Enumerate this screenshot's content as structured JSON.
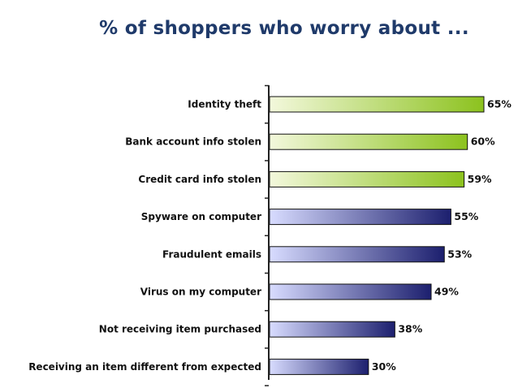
{
  "chart_data": {
    "type": "bar",
    "orientation": "horizontal",
    "title": "% of shoppers who worry about ...",
    "categories": [
      "Identity theft",
      "Bank account info stolen",
      "Credit card info stolen",
      "Spyware on computer",
      "Fraudulent emails",
      "Virus on my computer",
      "Not receiving item purchased",
      "Receiving an item different from expected"
    ],
    "values": [
      65,
      60,
      59,
      55,
      53,
      49,
      38,
      30
    ],
    "value_labels": [
      "65%",
      "60%",
      "59%",
      "55%",
      "53%",
      "49%",
      "38%",
      "30%"
    ],
    "xlim": [
      0,
      65
    ],
    "grid": false,
    "legend": "none",
    "colors": {
      "green_light": "#f3f8dc",
      "green_dark": "#8cc21e",
      "blue_light": "#d8dcff",
      "blue_dark": "#1c1f6e",
      "title": "#1f3a6a"
    },
    "highlight_count": 3
  }
}
